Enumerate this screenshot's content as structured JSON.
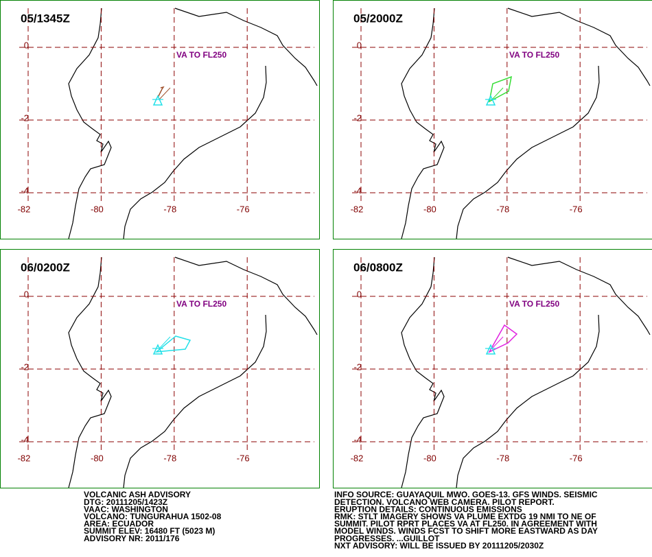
{
  "panels": [
    {
      "time": "05/1345Z",
      "annotation": "VA TO FL250"
    },
    {
      "time": "05/2000Z",
      "annotation": "VA TO FL250"
    },
    {
      "time": "06/0200Z",
      "annotation": "VA TO FL250"
    },
    {
      "time": "06/0800Z",
      "annotation": "VA TO FL250"
    }
  ],
  "map": {
    "lat_ticks": [
      0,
      -2,
      -4
    ],
    "lon_ticks": [
      -82,
      -80,
      -78,
      -76
    ]
  },
  "advisory": {
    "left": [
      "VOLCANIC ASH ADVISORY",
      "DTG: 20111205/1423Z",
      "VAAC: WASHINGTON",
      "VOLCANO: TUNGURAHUA 1502-08",
      "AREA: ECUADOR",
      "SUMMIT ELEV: 16480 FT (5023 M)",
      "ADVISORY NR: 2011/176"
    ],
    "right": [
      "INFO SOURCE: GUAYAQUIL MWO. GOES-13. GFS WINDS. SEISMIC",
      "DETECTION. VOLCANO WEB CAMERA. PILOT REPORT.",
      "ERUPTION DETAILS: CONTINUOUS EMISSIONS",
      "RMK: STLT IMAGERY SHOWS VA PLUME EXTDG 19 NMI TO NE OF",
      "SUMMIT. PILOT RPRT PLACES VA AT FL250. IN AGREEMENT WITH",
      "MODEL WINDS. WINDS FCST TO SHIFT MORE EASTWARD AS DAY",
      "PROGRESSES. ...GUILLOT",
      "NXT ADVISORY: WILL BE ISSUED BY 20111205/2030Z"
    ]
  }
}
